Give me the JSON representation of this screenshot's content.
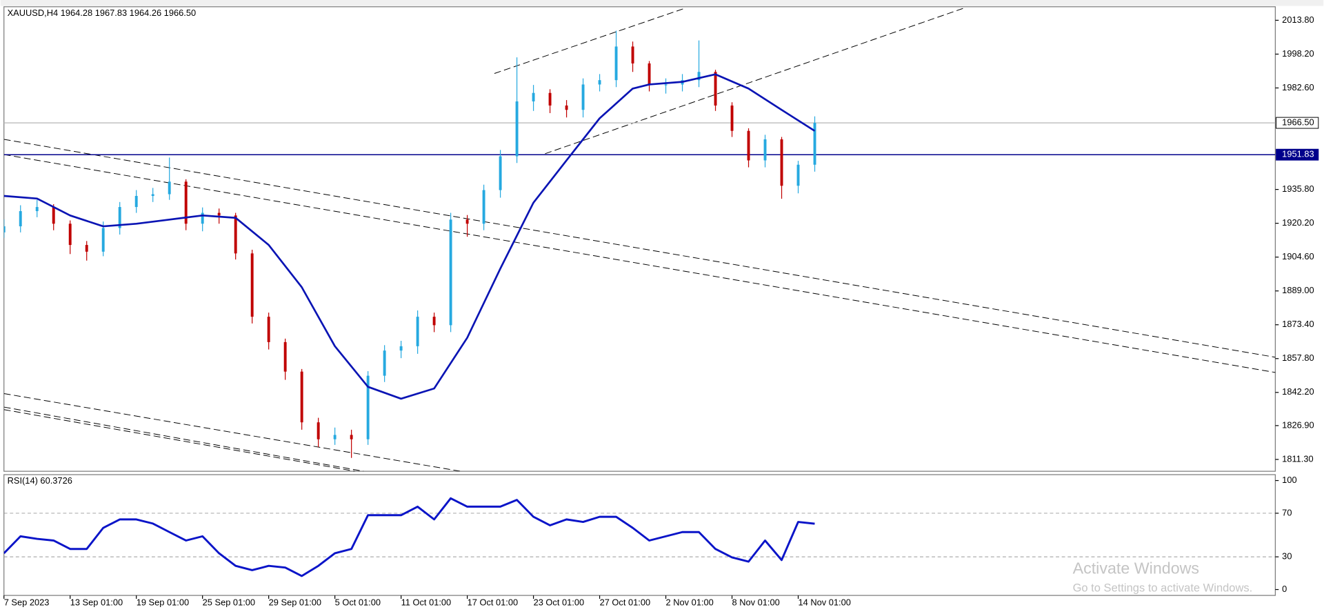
{
  "chart_data": [
    {
      "type": "candlestick",
      "title": "XAUUSD,H4  1964.28 1967.83 1964.26 1966.50",
      "up_color": "#26a9e0",
      "down_color": "#c00000",
      "x": [
        0,
        6,
        12,
        18,
        24,
        30,
        36,
        42,
        48,
        54,
        60,
        66,
        72,
        78,
        84,
        90,
        96,
        102,
        108,
        114,
        120,
        126,
        132,
        138,
        144,
        150,
        156,
        162,
        168,
        174,
        180,
        186,
        192,
        198,
        204,
        210,
        216,
        222,
        228,
        234,
        240,
        246,
        252,
        258,
        264,
        270,
        276,
        282,
        288,
        294
      ],
      "open": [
        1916,
        1918.8,
        1925.8,
        1927.7,
        1920,
        1910.2,
        1907.1,
        1918,
        1927.7,
        1932.8,
        1933.6,
        1939.4,
        1920,
        1925,
        1923.8,
        1906.3,
        1877.1,
        1865.4,
        1851.8,
        1828.4,
        1820.6,
        1822.6,
        1820.6,
        1849.9,
        1861.5,
        1863.5,
        1877.1,
        1873.2,
        1921.9,
        1920,
        1935.5,
        1951.1,
        1976.4,
        1980.3,
        1974.5,
        1972.5,
        1984.2,
        1986.2,
        2001.7,
        1993.9,
        1984.2,
        1984.2,
        1986.2,
        1990,
        1974.5,
        1962.8,
        1949.2,
        1958.9,
        1937.5,
        1947.2
      ],
      "high": [
        1922,
        1928.5,
        1931,
        1929,
        1921.5,
        1912,
        1921,
        1930,
        1935.5,
        1936.5,
        1950.5,
        1940.5,
        1927.5,
        1927,
        1925,
        1908,
        1879,
        1867,
        1853,
        1830.5,
        1826,
        1825,
        1852,
        1864,
        1866,
        1880,
        1879,
        1925,
        1924,
        1938,
        1954,
        1996.7,
        1984,
        1982,
        1977,
        1987,
        1989,
        2009,
        2004,
        1995,
        1987,
        1989,
        2004.5,
        1991,
        1976,
        1964,
        1961,
        1960,
        1949,
        1969.5
      ],
      "low": [
        1913.5,
        1916,
        1923,
        1917,
        1906,
        1903,
        1905,
        1915,
        1925,
        1930,
        1931,
        1917,
        1916.5,
        1920,
        1903.5,
        1874,
        1862,
        1848,
        1825,
        1817,
        1818,
        1812,
        1818,
        1847,
        1858,
        1860,
        1870,
        1870,
        1914,
        1917,
        1932,
        1948,
        1972,
        1971,
        1969,
        1969,
        1981,
        1983,
        1990,
        1981,
        1980,
        1981,
        1983,
        1972,
        1960,
        1946,
        1946,
        1931.5,
        1934,
        1944
      ],
      "close": [
        1918.8,
        1925.8,
        1927.7,
        1920,
        1910.2,
        1907.1,
        1918,
        1927.7,
        1932.8,
        1933.6,
        1939.4,
        1920,
        1925,
        1923.8,
        1906.3,
        1877.1,
        1865.4,
        1851.8,
        1828.4,
        1820.6,
        1822.6,
        1820.6,
        1849.9,
        1861.5,
        1863.5,
        1877.1,
        1873.2,
        1921.9,
        1920,
        1935.5,
        1951.1,
        1976.4,
        1980.3,
        1974.5,
        1972.5,
        1984.2,
        1986.2,
        2001.7,
        1993.9,
        1984.2,
        1984.2,
        1986.2,
        1990,
        1974.5,
        1962.8,
        1949.2,
        1958.9,
        1937.5,
        1947.2,
        1966.5
      ],
      "ma": {
        "color": "#0a14b4",
        "x": [
          0,
          12,
          24,
          36,
          48,
          60,
          72,
          84,
          96,
          108,
          120,
          132,
          144,
          156,
          168,
          180,
          192,
          204,
          216,
          228,
          234,
          246,
          258,
          270,
          282,
          294
        ],
        "values": [
          1932.8,
          1931.6,
          1923.8,
          1918.8,
          1920,
          1921.9,
          1923.8,
          1922.7,
          1910.2,
          1890.7,
          1863.5,
          1844.8,
          1839.3,
          1844,
          1867.4,
          1899.3,
          1929.7,
          1949.2,
          1968.6,
          1982.3,
          1984.2,
          1985.4,
          1988.9,
          1982.3,
          1972.5,
          1962.8
        ]
      },
      "price_lines": [
        {
          "value": 1966.5,
          "label": "1966.50",
          "color": "#c0c0c0"
        },
        {
          "value": 1951.83,
          "label": "1951.83",
          "color": "#00008b"
        }
      ],
      "xlim": [
        0,
        461
      ],
      "xticks": [
        {
          "value": 0,
          "label": "7 Sep 2023"
        },
        {
          "value": 24,
          "label": "13 Sep 01:00"
        },
        {
          "value": 48,
          "label": "19 Sep 01:00"
        },
        {
          "value": 72,
          "label": "25 Sep 01:00"
        },
        {
          "value": 96,
          "label": "29 Sep 01:00"
        },
        {
          "value": 120,
          "label": "5 Oct 01:00"
        },
        {
          "value": 144,
          "label": "11 Oct 01:00"
        },
        {
          "value": 168,
          "label": "17 Oct 01:00"
        },
        {
          "value": 192,
          "label": "23 Oct 01:00"
        },
        {
          "value": 216,
          "label": "27 Oct 01:00"
        },
        {
          "value": 240,
          "label": "2 Nov 01:00"
        },
        {
          "value": 264,
          "label": "8 Nov 01:00"
        },
        {
          "value": 288,
          "label": "14 Nov 01:00"
        }
      ],
      "ylim": [
        1805.84,
        2020.04
      ],
      "yticks": [
        {
          "value": 2013.8,
          "label": "2013.80"
        },
        {
          "value": 1998.2,
          "label": "1998.20"
        },
        {
          "value": 1982.6,
          "label": "1982.60"
        },
        {
          "value": 1935.8,
          "label": "1935.80"
        },
        {
          "value": 1920.2,
          "label": "1920.20"
        },
        {
          "value": 1904.6,
          "label": "1904.60"
        },
        {
          "value": 1889,
          "label": "1889.00"
        },
        {
          "value": 1873.4,
          "label": "1873.40"
        },
        {
          "value": 1857.8,
          "label": "1857.80"
        },
        {
          "value": 1842.2,
          "label": "1842.20"
        },
        {
          "value": 1826.9,
          "label": "1826.90"
        },
        {
          "value": 1811.3,
          "label": "1811.30"
        }
      ]
    },
    {
      "type": "line",
      "title": "RSI(14) 60.3726",
      "x": [
        0,
        6,
        12,
        18,
        24,
        30,
        36,
        42,
        48,
        54,
        60,
        66,
        72,
        78,
        84,
        90,
        96,
        102,
        108,
        114,
        120,
        126,
        132,
        138,
        144,
        150,
        156,
        162,
        168,
        174,
        180,
        186,
        192,
        198,
        204,
        210,
        216,
        222,
        228,
        234,
        240,
        246,
        252,
        258,
        264,
        270,
        276,
        282,
        288,
        294
      ],
      "series": [
        {
          "color": "#0a14c8",
          "values": [
            33.3,
            48.8,
            46.5,
            45,
            37.2,
            37.2,
            56.6,
            64.3,
            64.3,
            60.5,
            52.7,
            45,
            48.8,
            33.3,
            21.7,
            17.8,
            21.7,
            20.2,
            12.4,
            21.7,
            33.3,
            37.2,
            68.2,
            68.2,
            68.2,
            76,
            64.3,
            83.7,
            76,
            76,
            76,
            82.2,
            66.7,
            58.9,
            64.3,
            62,
            66.7,
            66.7,
            56.6,
            45,
            48.8,
            52.7,
            52.7,
            37.2,
            29.5,
            25.6,
            45,
            27.1,
            62,
            60.4
          ]
        }
      ],
      "xlim": [
        0,
        461
      ],
      "ylim": [
        -5.4,
        105.4
      ],
      "yticks": [
        100,
        70,
        30,
        0
      ],
      "levels": [
        70,
        30
      ]
    }
  ],
  "watermark": {
    "title": "Activate Windows",
    "subtitle": "Go to Settings to activate Windows."
  }
}
